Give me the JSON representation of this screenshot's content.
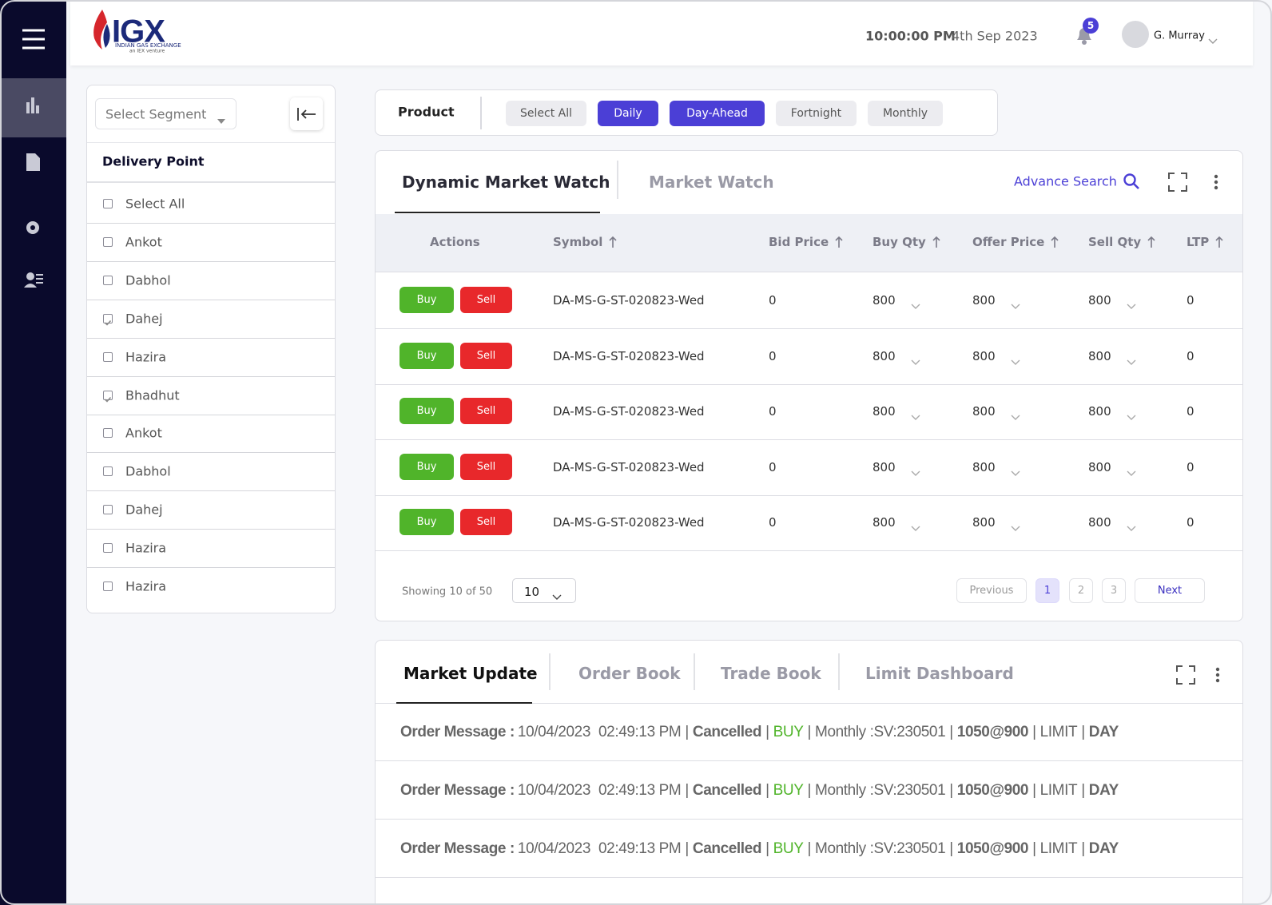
{
  "header": {
    "logo": "IGX",
    "logo_subtitle": "INDIAN GAS EXCHANGE",
    "logo_tagline": "an IEX venture",
    "time": "10:00:00 PM",
    "date": "4th Sep 2023",
    "notification_count": 5,
    "user_name": "G. Murray"
  },
  "filter_panel": {
    "segment_placeholder": "Select Segment",
    "heading": "Delivery Point",
    "items": [
      {
        "label": "Select All",
        "checked": false
      },
      {
        "label": "Ankot",
        "checked": false
      },
      {
        "label": "Dabhol",
        "checked": false
      },
      {
        "label": "Dahej",
        "checked": true
      },
      {
        "label": "Hazira",
        "checked": false
      },
      {
        "label": "Bhadhut",
        "checked": true
      },
      {
        "label": "Ankot",
        "checked": false
      },
      {
        "label": "Dabhol",
        "checked": false
      },
      {
        "label": "Dahej",
        "checked": false
      },
      {
        "label": "Hazira",
        "checked": false
      },
      {
        "label": "Hazira",
        "checked": false
      }
    ]
  },
  "product_bar": {
    "label": "Product",
    "options": [
      {
        "label": "Select All",
        "active": false
      },
      {
        "label": "Daily",
        "active": true
      },
      {
        "label": "Day-Ahead",
        "active": true
      },
      {
        "label": "Fortnight",
        "active": false
      },
      {
        "label": "Monthly",
        "active": false
      }
    ]
  },
  "market_watch": {
    "tabs": [
      {
        "label": "Dynamic Market Watch",
        "active": true
      },
      {
        "label": "Market Watch",
        "active": false
      }
    ],
    "advance_search": "Advance Search",
    "columns": [
      {
        "label": "Actions",
        "sortable": false
      },
      {
        "label": "Symbol",
        "sortable": true
      },
      {
        "label": "Bid Price",
        "sortable": true
      },
      {
        "label": "Buy Qty",
        "sortable": true
      },
      {
        "label": "Offer Price",
        "sortable": true
      },
      {
        "label": "Sell Qty",
        "sortable": true
      },
      {
        "label": "LTP",
        "sortable": true
      }
    ],
    "buy_label": "Buy",
    "sell_label": "Sell",
    "rows": [
      {
        "symbol": "DA-MS-G-ST-020823-Wed",
        "bid_price": 0,
        "buy_qty": 800,
        "offer_price": 800,
        "sell_qty": 800,
        "ltp": 0
      },
      {
        "symbol": "DA-MS-G-ST-020823-Wed",
        "bid_price": 0,
        "buy_qty": 800,
        "offer_price": 800,
        "sell_qty": 800,
        "ltp": 0
      },
      {
        "symbol": "DA-MS-G-ST-020823-Wed",
        "bid_price": 0,
        "buy_qty": 800,
        "offer_price": 800,
        "sell_qty": 800,
        "ltp": 0
      },
      {
        "symbol": "DA-MS-G-ST-020823-Wed",
        "bid_price": 0,
        "buy_qty": 800,
        "offer_price": 800,
        "sell_qty": 800,
        "ltp": 0
      },
      {
        "symbol": "DA-MS-G-ST-020823-Wed",
        "bid_price": 0,
        "buy_qty": 800,
        "offer_price": 800,
        "sell_qty": 800,
        "ltp": 0
      }
    ],
    "pagination": {
      "showing": "Showing 10 of 50",
      "page_size": 10,
      "previous": "Previous",
      "pages": [
        1,
        2,
        3
      ],
      "current_page": 1,
      "next": "Next"
    }
  },
  "market_update": {
    "tabs": [
      {
        "label": "Market Update",
        "active": true
      },
      {
        "label": "Order Book",
        "active": false
      },
      {
        "label": "Trade Book",
        "active": false
      },
      {
        "label": "Limit Dashboard",
        "active": false
      }
    ],
    "separator": "|",
    "messages": [
      {
        "label": "Order Message :",
        "date": "10/04/2023",
        "time": "02:49:13 PM",
        "status": "Cancelled",
        "side": "BUY",
        "product": "Monthly :SV:230501",
        "quantity_price": "1050@900",
        "order_type": "LIMIT",
        "validity": "DAY"
      },
      {
        "label": "Order Message :",
        "date": "10/04/2023",
        "time": "02:49:13 PM",
        "status": "Cancelled",
        "side": "BUY",
        "product": "Monthly :SV:230501",
        "quantity_price": "1050@900",
        "order_type": "LIMIT",
        "validity": "DAY"
      },
      {
        "label": "Order Message :",
        "date": "10/04/2023",
        "time": "02:49:13 PM",
        "status": "Cancelled",
        "side": "BUY",
        "product": "Monthly :SV:230501",
        "quantity_price": "1050@900",
        "order_type": "LIMIT",
        "validity": "DAY"
      }
    ]
  }
}
